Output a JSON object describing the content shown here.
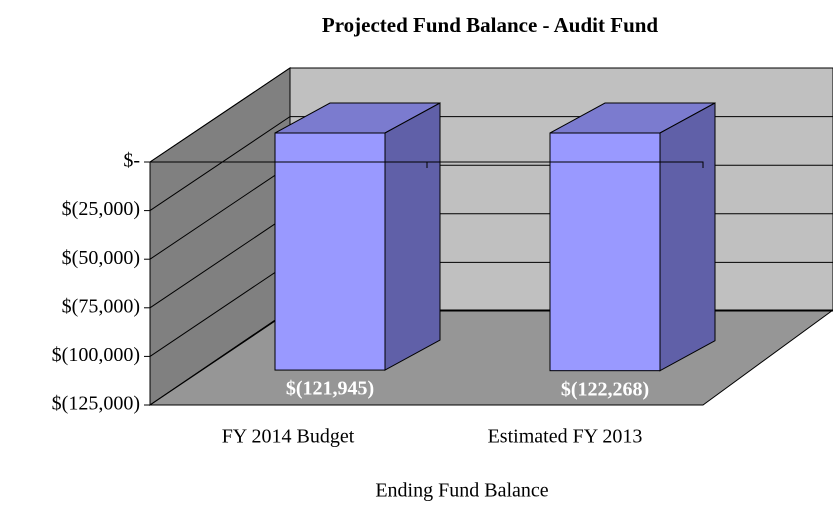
{
  "chart_data": {
    "type": "bar3d",
    "title": "Projected Fund Balance - Audit Fund",
    "x_label": "Ending Fund Balance",
    "categories": [
      "FY 2014 Budget",
      "Estimated FY 2013"
    ],
    "values": [
      -121945,
      -122268
    ],
    "value_labels": [
      "$(121,945)",
      "$(122,268)"
    ],
    "color": "#9999ff",
    "ylim": [
      -125000,
      0
    ],
    "yticks": [
      {
        "value": 0,
        "label": "$-"
      },
      {
        "value": -25000,
        "label": "$(25,000)"
      },
      {
        "value": -50000,
        "label": "$(50,000)"
      },
      {
        "value": -75000,
        "label": "$(75,000)"
      },
      {
        "value": -100000,
        "label": "$(100,000)"
      },
      {
        "value": -125000,
        "label": "$(125,000)"
      }
    ],
    "grid": true
  }
}
